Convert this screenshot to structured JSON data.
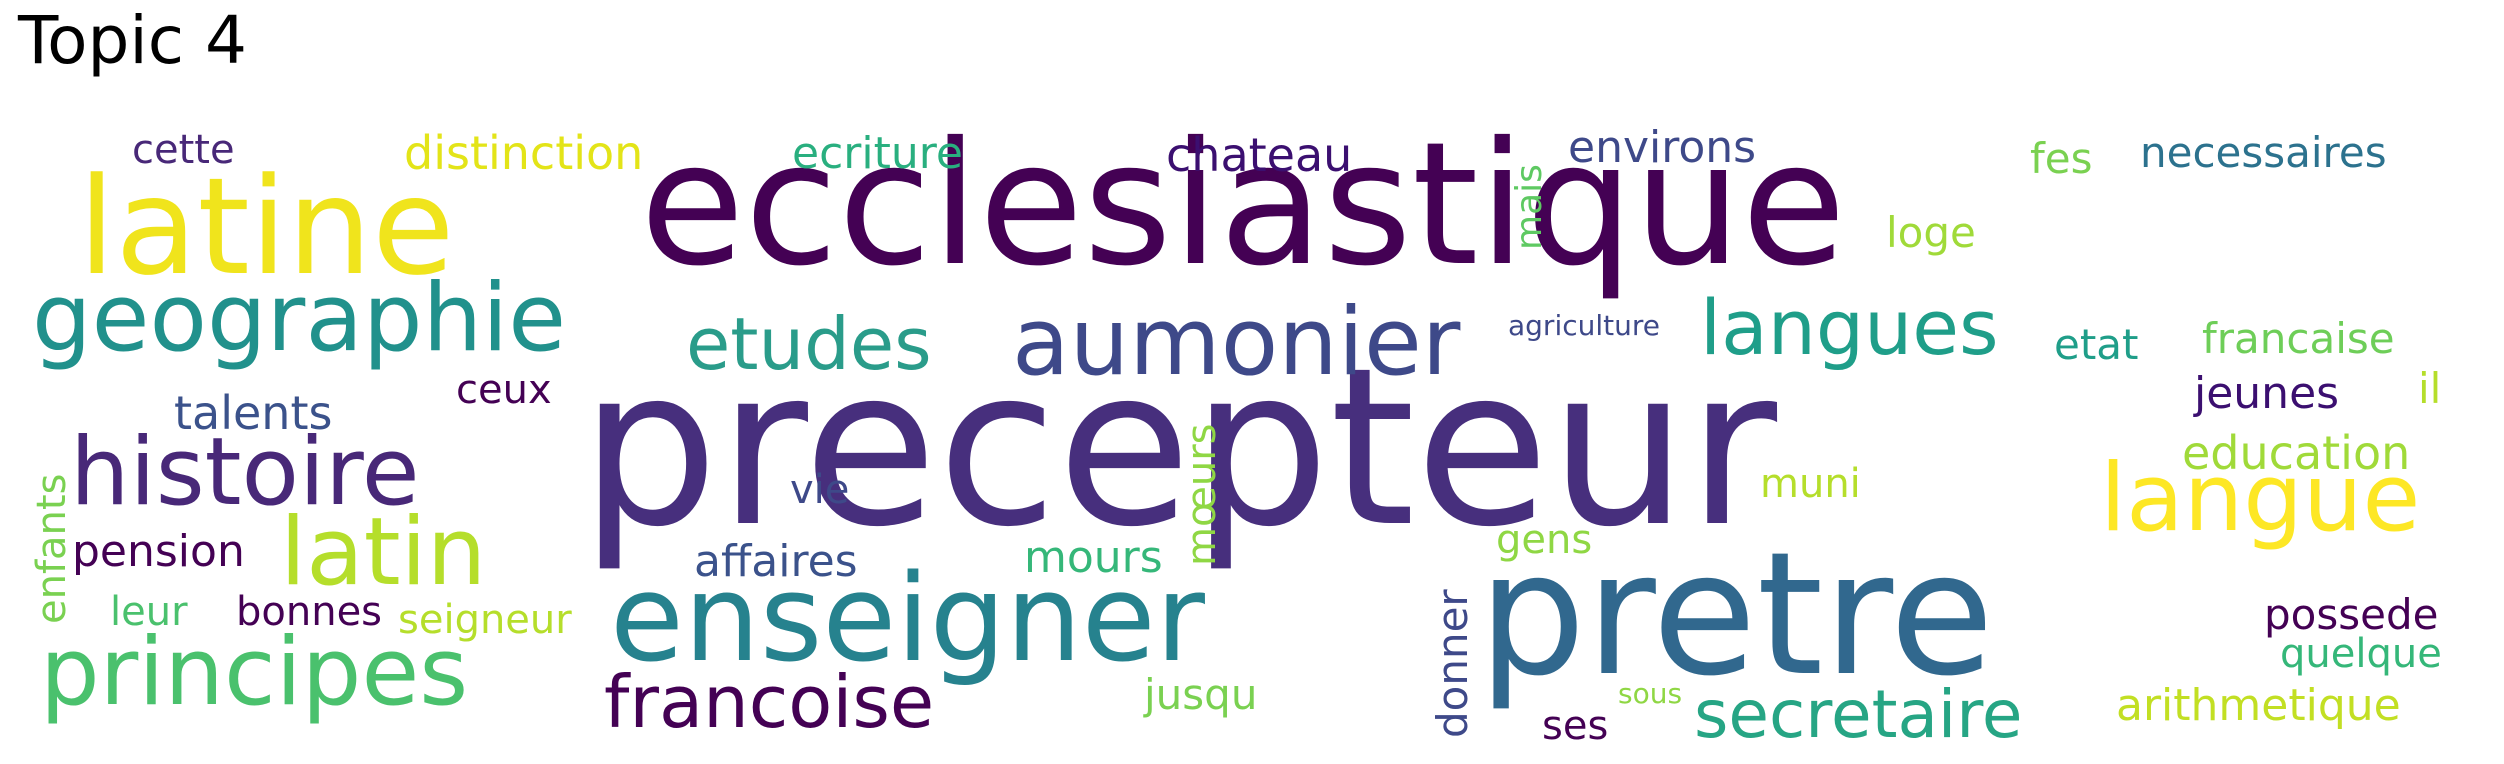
{
  "title": "Topic 4",
  "words": {
    "precepteur": "precepteur",
    "ecclesiastique": "ecclesiastique",
    "pretre": "pretre",
    "enseigner": "enseigner",
    "latine": "latine",
    "aumonier": "aumonier",
    "geographie": "geographie",
    "histoire": "histoire",
    "latin": "latin",
    "langue": "langue",
    "principes": "principes",
    "langues": "langues",
    "etudes": "etudes",
    "francoise": "francoise",
    "secretaire": "secretaire",
    "chateau": "chateau",
    "distinction": "distinction",
    "ecriture": "ecriture",
    "environs": "environs",
    "necessaires": "necessaires",
    "cette": "cette",
    "fes": "fes",
    "loge": "loge",
    "mais": "mais",
    "agriculture": "agriculture",
    "etat": "etat",
    "francaise": "francaise",
    "jeunes": "jeunes",
    "il": "il",
    "ceux": "ceux",
    "talents": "talents",
    "enfants": "enfants",
    "education": "education",
    "muni": "muni",
    "vie": "vie",
    "moeurs": "mœurs",
    "pension": "pension",
    "affaires": "affaires",
    "mours": "mours",
    "gens": "gens",
    "leur": "leur",
    "bonnes": "bonnes",
    "seigneur": "seigneur",
    "donner": "donner",
    "possede": "possede",
    "quelque": "quelque",
    "jusqu": "jusqu",
    "arithmetique": "arithmetique",
    "sous": "sous",
    "ses": "ses"
  },
  "colors": {
    "dark_purple": "#440154",
    "purple": "#482878",
    "indigo": "#3e4989",
    "blue": "#31688e",
    "teal": "#26828e",
    "green_teal": "#1f9e89",
    "green": "#35b779",
    "light_green": "#6ece58",
    "yellow_green": "#b5de2b",
    "yellow": "#fde725"
  }
}
